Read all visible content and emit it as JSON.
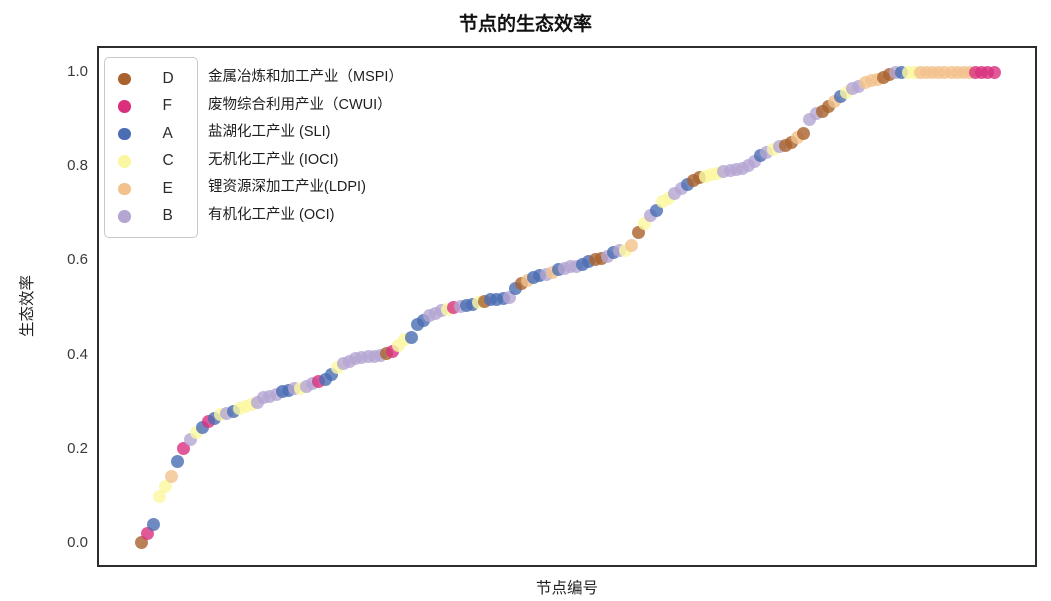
{
  "chart_data": {
    "type": "scatter",
    "title": "节点的生态效率",
    "xlabel": "节点编号",
    "ylabel": "生态效率",
    "ylim": [
      0.0,
      1.0
    ],
    "yticks": [
      "0.0",
      "0.2",
      "0.4",
      "0.6",
      "0.8",
      "1.0"
    ],
    "x_tick_labels_visible": false,
    "grid": false,
    "legend_position": "upper-left",
    "series_meta": [
      {
        "key": "D",
        "label": "金属冶炼和加工产业（MSPI）",
        "color": "#a9622d"
      },
      {
        "key": "F",
        "label": "废物综合利用产业（CWUI）",
        "color": "#d9307e"
      },
      {
        "key": "A",
        "label": "盐湖化工产业 (SLI)",
        "color": "#4a6db3"
      },
      {
        "key": "C",
        "label": "无机化工产业 (IOCI)",
        "color": "#fbf7a0"
      },
      {
        "key": "E",
        "label": "锂资源深加工产业(LDPI)",
        "color": "#f2c28c"
      },
      {
        "key": "B",
        "label": "有机化工产业 (OCI)",
        "color": "#b4a5d2"
      }
    ],
    "points": [
      [
        1,
        0.002,
        "D"
      ],
      [
        2,
        0.021,
        "F"
      ],
      [
        3,
        0.04,
        "A"
      ],
      [
        4,
        0.098,
        "C"
      ],
      [
        5,
        0.119,
        "C"
      ],
      [
        6,
        0.142,
        "E"
      ],
      [
        7,
        0.172,
        "A"
      ],
      [
        8,
        0.2,
        "F"
      ],
      [
        9,
        0.219,
        "B"
      ],
      [
        10,
        0.234,
        "C"
      ],
      [
        11,
        0.246,
        "A"
      ],
      [
        12,
        0.257,
        "F"
      ],
      [
        13,
        0.265,
        "A"
      ],
      [
        14,
        0.272,
        "C"
      ],
      [
        15,
        0.276,
        "B"
      ],
      [
        16,
        0.28,
        "A"
      ],
      [
        17,
        0.285,
        "C"
      ],
      [
        18,
        0.289,
        "C"
      ],
      [
        19,
        0.293,
        "C"
      ],
      [
        20,
        0.299,
        "B"
      ],
      [
        21,
        0.308,
        "B"
      ],
      [
        22,
        0.312,
        "B"
      ],
      [
        23,
        0.316,
        "B"
      ],
      [
        24,
        0.321,
        "A"
      ],
      [
        25,
        0.323,
        "A"
      ],
      [
        26,
        0.327,
        "B"
      ],
      [
        27,
        0.329,
        "C"
      ],
      [
        28,
        0.333,
        "B"
      ],
      [
        29,
        0.338,
        "B"
      ],
      [
        30,
        0.342,
        "F"
      ],
      [
        31,
        0.348,
        "A"
      ],
      [
        32,
        0.357,
        "A"
      ],
      [
        33,
        0.372,
        "C"
      ],
      [
        34,
        0.382,
        "B"
      ],
      [
        35,
        0.386,
        "B"
      ],
      [
        36,
        0.391,
        "B"
      ],
      [
        37,
        0.393,
        "B"
      ],
      [
        38,
        0.395,
        "B"
      ],
      [
        39,
        0.397,
        "B"
      ],
      [
        40,
        0.399,
        "B"
      ],
      [
        41,
        0.403,
        "D"
      ],
      [
        42,
        0.406,
        "F"
      ],
      [
        43,
        0.42,
        "C"
      ],
      [
        44,
        0.431,
        "C"
      ],
      [
        45,
        0.437,
        "A"
      ],
      [
        46,
        0.463,
        "A"
      ],
      [
        47,
        0.473,
        "A"
      ],
      [
        48,
        0.482,
        "B"
      ],
      [
        49,
        0.488,
        "B"
      ],
      [
        50,
        0.493,
        "B"
      ],
      [
        51,
        0.495,
        "C"
      ],
      [
        52,
        0.499,
        "F"
      ],
      [
        53,
        0.503,
        "B"
      ],
      [
        54,
        0.505,
        "A"
      ],
      [
        55,
        0.507,
        "A"
      ],
      [
        56,
        0.51,
        "C"
      ],
      [
        57,
        0.512,
        "D"
      ],
      [
        58,
        0.516,
        "A"
      ],
      [
        59,
        0.518,
        "A"
      ],
      [
        60,
        0.52,
        "A"
      ],
      [
        61,
        0.522,
        "B"
      ],
      [
        62,
        0.541,
        "A"
      ],
      [
        63,
        0.552,
        "D"
      ],
      [
        64,
        0.558,
        "E"
      ],
      [
        65,
        0.563,
        "A"
      ],
      [
        66,
        0.567,
        "A"
      ],
      [
        67,
        0.571,
        "B"
      ],
      [
        68,
        0.575,
        "E"
      ],
      [
        69,
        0.58,
        "A"
      ],
      [
        70,
        0.582,
        "B"
      ],
      [
        71,
        0.586,
        "B"
      ],
      [
        72,
        0.588,
        "B"
      ],
      [
        73,
        0.592,
        "A"
      ],
      [
        74,
        0.597,
        "A"
      ],
      [
        75,
        0.601,
        "D"
      ],
      [
        76,
        0.605,
        "D"
      ],
      [
        77,
        0.609,
        "B"
      ],
      [
        78,
        0.616,
        "A"
      ],
      [
        79,
        0.62,
        "B"
      ],
      [
        80,
        0.622,
        "C"
      ],
      [
        81,
        0.631,
        "E"
      ],
      [
        82,
        0.66,
        "D"
      ],
      [
        83,
        0.679,
        "C"
      ],
      [
        84,
        0.696,
        "B"
      ],
      [
        85,
        0.707,
        "A"
      ],
      [
        86,
        0.726,
        "C"
      ],
      [
        87,
        0.732,
        "C"
      ],
      [
        88,
        0.743,
        "B"
      ],
      [
        89,
        0.752,
        "B"
      ],
      [
        90,
        0.762,
        "A"
      ],
      [
        91,
        0.769,
        "D"
      ],
      [
        92,
        0.775,
        "D"
      ],
      [
        93,
        0.779,
        "C"
      ],
      [
        94,
        0.783,
        "C"
      ],
      [
        95,
        0.785,
        "C"
      ],
      [
        96,
        0.788,
        "B"
      ],
      [
        97,
        0.79,
        "B"
      ],
      [
        98,
        0.792,
        "B"
      ],
      [
        99,
        0.796,
        "B"
      ],
      [
        100,
        0.802,
        "B"
      ],
      [
        101,
        0.811,
        "B"
      ],
      [
        102,
        0.822,
        "A"
      ],
      [
        103,
        0.83,
        "B"
      ],
      [
        104,
        0.836,
        "C"
      ],
      [
        105,
        0.841,
        "B"
      ],
      [
        106,
        0.845,
        "D"
      ],
      [
        107,
        0.851,
        "D"
      ],
      [
        108,
        0.86,
        "E"
      ],
      [
        109,
        0.87,
        "D"
      ],
      [
        110,
        0.9,
        "B"
      ],
      [
        111,
        0.911,
        "B"
      ],
      [
        112,
        0.917,
        "D"
      ],
      [
        113,
        0.926,
        "D"
      ],
      [
        114,
        0.938,
        "E"
      ],
      [
        115,
        0.949,
        "A"
      ],
      [
        116,
        0.957,
        "C"
      ],
      [
        117,
        0.964,
        "B"
      ],
      [
        118,
        0.97,
        "B"
      ],
      [
        119,
        0.977,
        "E"
      ],
      [
        120,
        0.981,
        "E"
      ],
      [
        121,
        0.985,
        "E"
      ],
      [
        122,
        0.989,
        "D"
      ],
      [
        123,
        0.994,
        "D"
      ],
      [
        124,
        0.998,
        "B"
      ],
      [
        125,
        1.0,
        "A"
      ],
      [
        126,
        1.0,
        "C"
      ],
      [
        127,
        1.0,
        "C"
      ],
      [
        128,
        1.0,
        "E"
      ],
      [
        129,
        1.0,
        "E"
      ],
      [
        130,
        1.0,
        "E"
      ],
      [
        131,
        1.0,
        "E"
      ],
      [
        132,
        1.0,
        "E"
      ],
      [
        133,
        1.0,
        "E"
      ],
      [
        134,
        1.0,
        "E"
      ],
      [
        135,
        1.0,
        "E"
      ],
      [
        136,
        1.0,
        "E"
      ],
      [
        137,
        1.0,
        "F"
      ],
      [
        138,
        1.0,
        "F"
      ],
      [
        139,
        1.0,
        "F"
      ],
      [
        140,
        1.0,
        "F"
      ]
    ]
  }
}
